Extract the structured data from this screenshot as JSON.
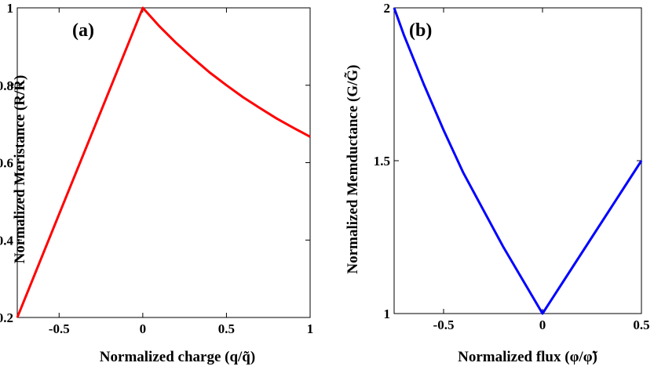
{
  "chart_data": [
    {
      "type": "line",
      "panel_label": "(a)",
      "xlabel": "Normalized charge (q/q̃)",
      "ylabel": "Normalized Meristance (R/R̃)",
      "xlim": [
        -0.75,
        1.0
      ],
      "ylim": [
        0.2,
        1.0
      ],
      "xticks": [
        "-0.5",
        "0",
        "0.5",
        "1"
      ],
      "xtick_values": [
        -0.5,
        0,
        0.5,
        1
      ],
      "yticks": [
        "0.2",
        "0.4",
        "0.6",
        "0.8",
        "1"
      ],
      "ytick_values": [
        0.2,
        0.4,
        0.6,
        0.8,
        1
      ],
      "grid": false,
      "series": [
        {
          "color": "#ff0000",
          "x": [
            -0.75,
            -0.5,
            -0.25,
            0,
            0.1,
            0.2,
            0.3,
            0.4,
            0.5,
            0.6,
            0.7,
            0.8,
            0.9,
            1.0
          ],
          "y": [
            0.2,
            0.467,
            0.733,
            1.0,
            0.952,
            0.909,
            0.87,
            0.833,
            0.8,
            0.769,
            0.741,
            0.714,
            0.69,
            0.667
          ]
        }
      ]
    },
    {
      "type": "line",
      "panel_label": "(b)",
      "xlabel": "Normalized flux (φ/φ̃)",
      "ylabel": "Normalized Memductance (G/G̃)",
      "xlim": [
        -0.75,
        0.5
      ],
      "ylim": [
        1.0,
        2.0
      ],
      "xticks": [
        "-0.5",
        "0",
        "0.5"
      ],
      "xtick_values": [
        -0.5,
        0,
        0.5
      ],
      "yticks": [
        "1",
        "1.5",
        "2"
      ],
      "ytick_values": [
        1,
        1.5,
        2
      ],
      "grid": false,
      "series": [
        {
          "color": "#0000ff",
          "x": [
            -0.75,
            -0.7,
            -0.6,
            -0.5,
            -0.4,
            -0.3,
            -0.2,
            -0.1,
            0,
            0.1,
            0.2,
            0.3,
            0.4,
            0.5
          ],
          "y": [
            2.0,
            1.91,
            1.75,
            1.6,
            1.46,
            1.34,
            1.22,
            1.11,
            1.0,
            1.1,
            1.2,
            1.3,
            1.4,
            1.5
          ]
        }
      ]
    }
  ],
  "colors": {
    "series_a": "#ff0000",
    "series_b": "#0000ff",
    "axes": "#000000"
  }
}
